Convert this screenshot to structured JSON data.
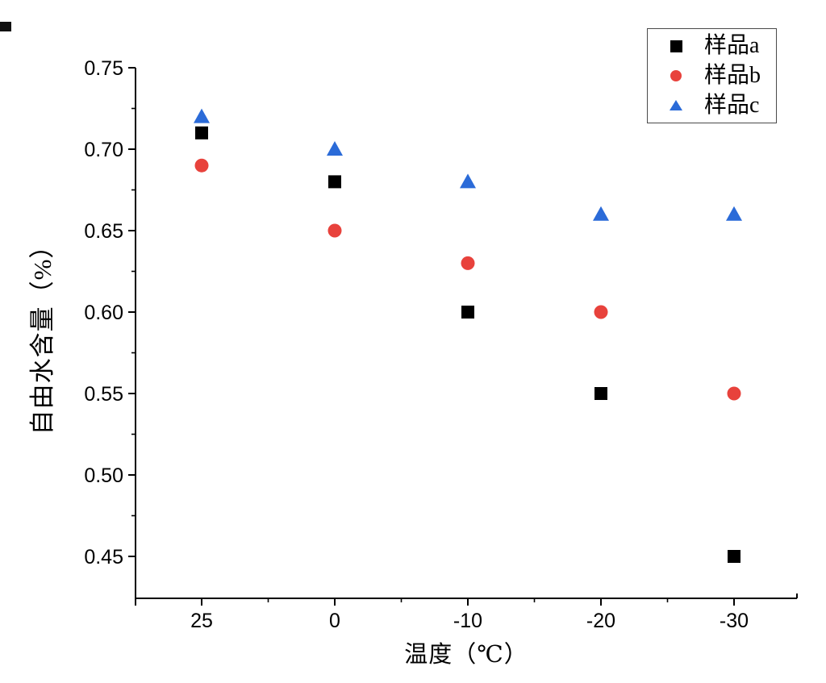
{
  "chart_data": {
    "type": "scatter",
    "title": "",
    "xlabel": "温度（℃）",
    "ylabel": "自由水含量（%）",
    "x_tick_labels": [
      "25",
      "0",
      "-10",
      "-20",
      "-30"
    ],
    "y_tick_labels": [
      "0.45",
      "0.50",
      "0.55",
      "0.60",
      "0.65",
      "0.70",
      "0.75"
    ],
    "y_ticks": [
      0.45,
      0.5,
      0.55,
      0.6,
      0.65,
      0.7,
      0.75
    ],
    "ylim": [
      0.424,
      0.75
    ],
    "grid": false,
    "legend_position": "top-right",
    "axis_color": "#000000",
    "series": [
      {
        "name": "样品a",
        "marker": "square",
        "color": "#000000",
        "x": [
          25,
          0,
          -10,
          -20,
          -30
        ],
        "values": [
          0.71,
          0.68,
          0.6,
          0.55,
          0.45
        ]
      },
      {
        "name": "样品b",
        "marker": "circle",
        "color": "#e8423c",
        "x": [
          25,
          0,
          -10,
          -20,
          -30
        ],
        "values": [
          0.69,
          0.65,
          0.63,
          0.6,
          0.55
        ]
      },
      {
        "name": "样品c",
        "marker": "triangle",
        "color": "#2b6bd8",
        "x": [
          25,
          0,
          -10,
          -20,
          -30
        ],
        "values": [
          0.72,
          0.7,
          0.68,
          0.66,
          0.66
        ]
      }
    ]
  }
}
